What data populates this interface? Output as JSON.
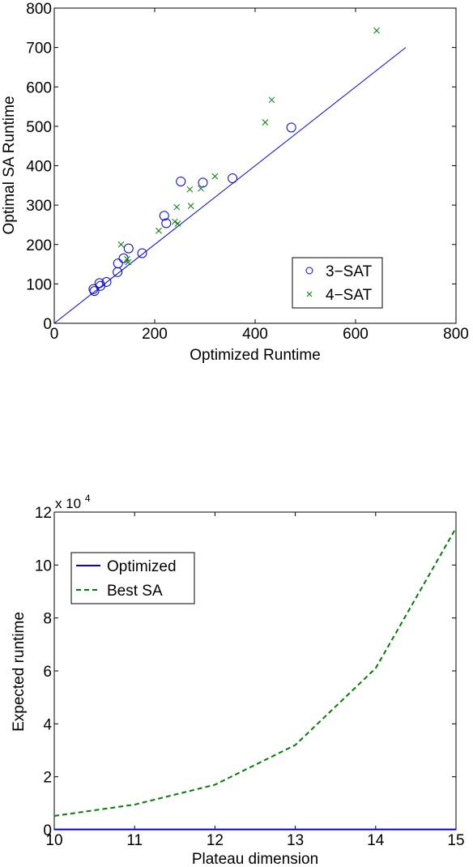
{
  "chart_data": [
    {
      "type": "scatter",
      "title": "",
      "xlabel": "Optimized Runtime",
      "ylabel": "Optimal SA Runtime",
      "xlim": [
        0,
        800
      ],
      "ylim": [
        0,
        800
      ],
      "xticks": [
        "0",
        "200",
        "400",
        "600",
        "800"
      ],
      "yticks": [
        "0",
        "100",
        "200",
        "300",
        "400",
        "500",
        "600",
        "700",
        "800"
      ],
      "grid": false,
      "legend_position": "bottom-right",
      "reference_line": {
        "x": [
          0,
          700
        ],
        "y": [
          0,
          700
        ],
        "color": "#0000ff"
      },
      "series": [
        {
          "name": "3−SAT",
          "marker": "circle",
          "color": "#0000ff",
          "points": [
            [
              78,
              87
            ],
            [
              80,
              82
            ],
            [
              90,
              102
            ],
            [
              92,
              95
            ],
            [
              104,
              105
            ],
            [
              126,
              130
            ],
            [
              127,
              152
            ],
            [
              138,
              165
            ],
            [
              148,
              190
            ],
            [
              175,
              178
            ],
            [
              219,
              273
            ],
            [
              223,
              254
            ],
            [
              252,
              360
            ],
            [
              296,
              357
            ],
            [
              355,
              368
            ],
            [
              472,
              497
            ]
          ]
        },
        {
          "name": "4−SAT",
          "marker": "x",
          "color": "#008000",
          "points": [
            [
              133,
              200
            ],
            [
              145,
              163
            ],
            [
              147,
              155
            ],
            [
              208,
              235
            ],
            [
              240,
              258
            ],
            [
              244,
              295
            ],
            [
              246,
              253
            ],
            [
              270,
              340
            ],
            [
              272,
              298
            ],
            [
              292,
              342
            ],
            [
              320,
              373
            ],
            [
              420,
              510
            ],
            [
              433,
              567
            ],
            [
              642,
              743
            ]
          ]
        }
      ]
    },
    {
      "type": "line",
      "title": "",
      "xlabel": "Plateau dimension",
      "ylabel": "Expected runtime",
      "xlim": [
        10,
        15
      ],
      "ylim": [
        0,
        12
      ],
      "y_multiplier_label": {
        "base": "x 10",
        "exponent": "4"
      },
      "xticks": [
        "10",
        "11",
        "12",
        "13",
        "14",
        "15"
      ],
      "yticks": [
        "0",
        "2",
        "4",
        "6",
        "8",
        "10",
        "12"
      ],
      "grid": false,
      "legend_position": "top-left",
      "series": [
        {
          "name": "Optimized",
          "style": "solid",
          "color": "#0000ff",
          "x": [
            10,
            11,
            12,
            13,
            14,
            15
          ],
          "y": [
            0.01,
            0.01,
            0.01,
            0.01,
            0.01,
            0.01
          ]
        },
        {
          "name": "Best SA",
          "style": "dashed",
          "color": "#008000",
          "x": [
            10,
            11,
            12,
            13,
            14,
            15
          ],
          "y": [
            0.52,
            0.95,
            1.7,
            3.2,
            6.1,
            11.4
          ]
        }
      ]
    }
  ]
}
